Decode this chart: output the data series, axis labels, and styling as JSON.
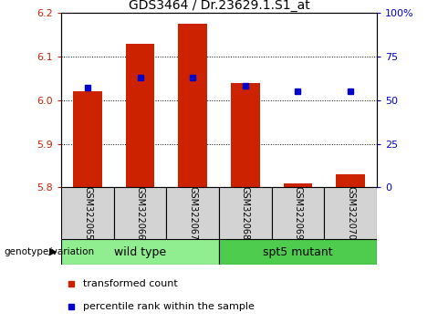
{
  "title": "GDS3464 / Dr.23629.1.S1_at",
  "samples": [
    "GSM322065",
    "GSM322066",
    "GSM322067",
    "GSM322068",
    "GSM322069",
    "GSM322070"
  ],
  "transformed_count": [
    6.02,
    6.13,
    6.175,
    6.04,
    5.81,
    5.83
  ],
  "percentile_rank": [
    57,
    63,
    63,
    58,
    55,
    55
  ],
  "bar_bottom": 5.8,
  "ylim_left": [
    5.8,
    6.2
  ],
  "ylim_right": [
    0,
    100
  ],
  "yticks_left": [
    5.8,
    5.9,
    6.0,
    6.1,
    6.2
  ],
  "yticks_right": [
    0,
    25,
    50,
    75,
    100
  ],
  "bar_color": "#cc2200",
  "dot_color": "#0000cc",
  "groups_info": [
    {
      "label": "wild type",
      "start": 0,
      "end": 2,
      "color": "#90ee90"
    },
    {
      "label": "spt5 mutant",
      "start": 3,
      "end": 5,
      "color": "#4dcc4d"
    }
  ],
  "legend_items": [
    "transformed count",
    "percentile rank within the sample"
  ],
  "legend_colors": [
    "#cc2200",
    "#0000cc"
  ],
  "genotype_label": "genotype/variation",
  "title_fontsize": 10,
  "tick_fontsize": 8,
  "sample_fontsize": 7,
  "group_fontsize": 9,
  "legend_fontsize": 8
}
